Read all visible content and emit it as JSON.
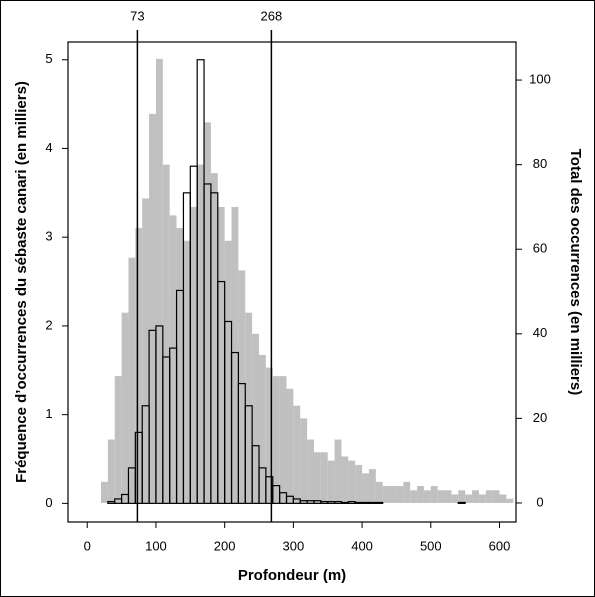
{
  "chart_data": {
    "type": "histogram",
    "xlabel": "Profondeur (m)",
    "ylabel": "Fréquence d’occurrences du sébaste canari (en milliers)",
    "y2label": "Total des occurrences (en milliers)",
    "bins": [
      0,
      10,
      20,
      30,
      40,
      50,
      60,
      70,
      80,
      90,
      100,
      110,
      120,
      130,
      140,
      150,
      160,
      170,
      180,
      190,
      200,
      210,
      220,
      230,
      240,
      250,
      260,
      270,
      280,
      290,
      300,
      310,
      320,
      330,
      340,
      350,
      360,
      370,
      380,
      390,
      400,
      410,
      420,
      430,
      440,
      450,
      460,
      470,
      480,
      490,
      500,
      510,
      520,
      530,
      540,
      550,
      560,
      570,
      580,
      590,
      600,
      610,
      620
    ],
    "series": [
      {
        "color": "#c0c0c0",
        "axis": "y2",
        "values": [
          0,
          0,
          5,
          15,
          30,
          45,
          58,
          65,
          72,
          92,
          105,
          80,
          68,
          65,
          62,
          70,
          80,
          90,
          78,
          70,
          62,
          70,
          55,
          45,
          40,
          35,
          32,
          30,
          30,
          27,
          23,
          20,
          15,
          12,
          12,
          10,
          15,
          11,
          10,
          9,
          7,
          8,
          5,
          4,
          4,
          4,
          5,
          3,
          4,
          3,
          4,
          3,
          3,
          2,
          3,
          2,
          3,
          2,
          3,
          3,
          2,
          1
        ]
      },
      {
        "color": "#000000",
        "values": [
          0,
          0,
          0,
          0.02,
          0.05,
          0.1,
          0.4,
          0.8,
          1.1,
          1.95,
          2.0,
          1.65,
          1.75,
          2.4,
          3.5,
          3.8,
          5.0,
          3.6,
          3.5,
          2.5,
          2.05,
          1.7,
          1.35,
          1.1,
          0.65,
          0.4,
          0.3,
          0.2,
          0.12,
          0.08,
          0.05,
          0.03,
          0.03,
          0.03,
          0.02,
          0.02,
          0.02,
          0.01,
          0.02,
          0.01,
          0.01,
          0.01,
          0.01,
          0,
          0,
          0,
          0,
          0,
          0,
          0,
          0,
          0,
          0,
          0,
          0.01,
          0,
          0,
          0,
          0,
          0,
          0,
          0
        ]
      }
    ],
    "vlines": [
      73,
      268
    ],
    "xlim": [
      -28,
      624
    ],
    "xticks": [
      0,
      100,
      200,
      300,
      400,
      500,
      600
    ],
    "ylim": [
      -0.21,
      5.2
    ],
    "yticks": [
      0,
      1,
      2,
      3,
      4,
      5
    ],
    "y2lim": [
      -4.5,
      109
    ],
    "y2ticks": [
      0,
      20,
      40,
      60,
      80,
      100
    ]
  }
}
